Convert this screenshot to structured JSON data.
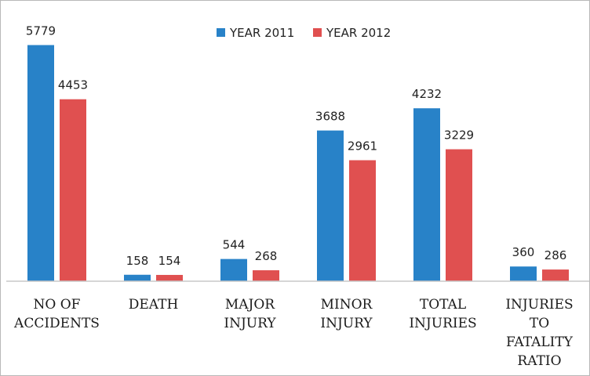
{
  "chart_data": {
    "type": "bar",
    "title": "",
    "xlabel": "",
    "ylabel": "",
    "categories": [
      [
        "NO OF",
        "ACCIDENTS"
      ],
      [
        "DEATH"
      ],
      [
        "MAJOR",
        "INJURY"
      ],
      [
        "MINOR",
        "INJURY"
      ],
      [
        "TOTAL",
        "INJURIES"
      ],
      [
        "INJURIES",
        "TO",
        "FATALITY",
        "RATIO"
      ]
    ],
    "series": [
      {
        "name": "YEAR 2011",
        "color": "#2882c8",
        "values": [
          5779,
          158,
          544,
          3688,
          4232,
          360
        ]
      },
      {
        "name": "YEAR 2012",
        "color": "#e05050",
        "values": [
          4453,
          154,
          268,
          2961,
          3229,
          286
        ]
      }
    ],
    "ylim": [
      0,
      6000
    ],
    "grid": false,
    "legend_position": "top-center",
    "data_labels": true
  }
}
